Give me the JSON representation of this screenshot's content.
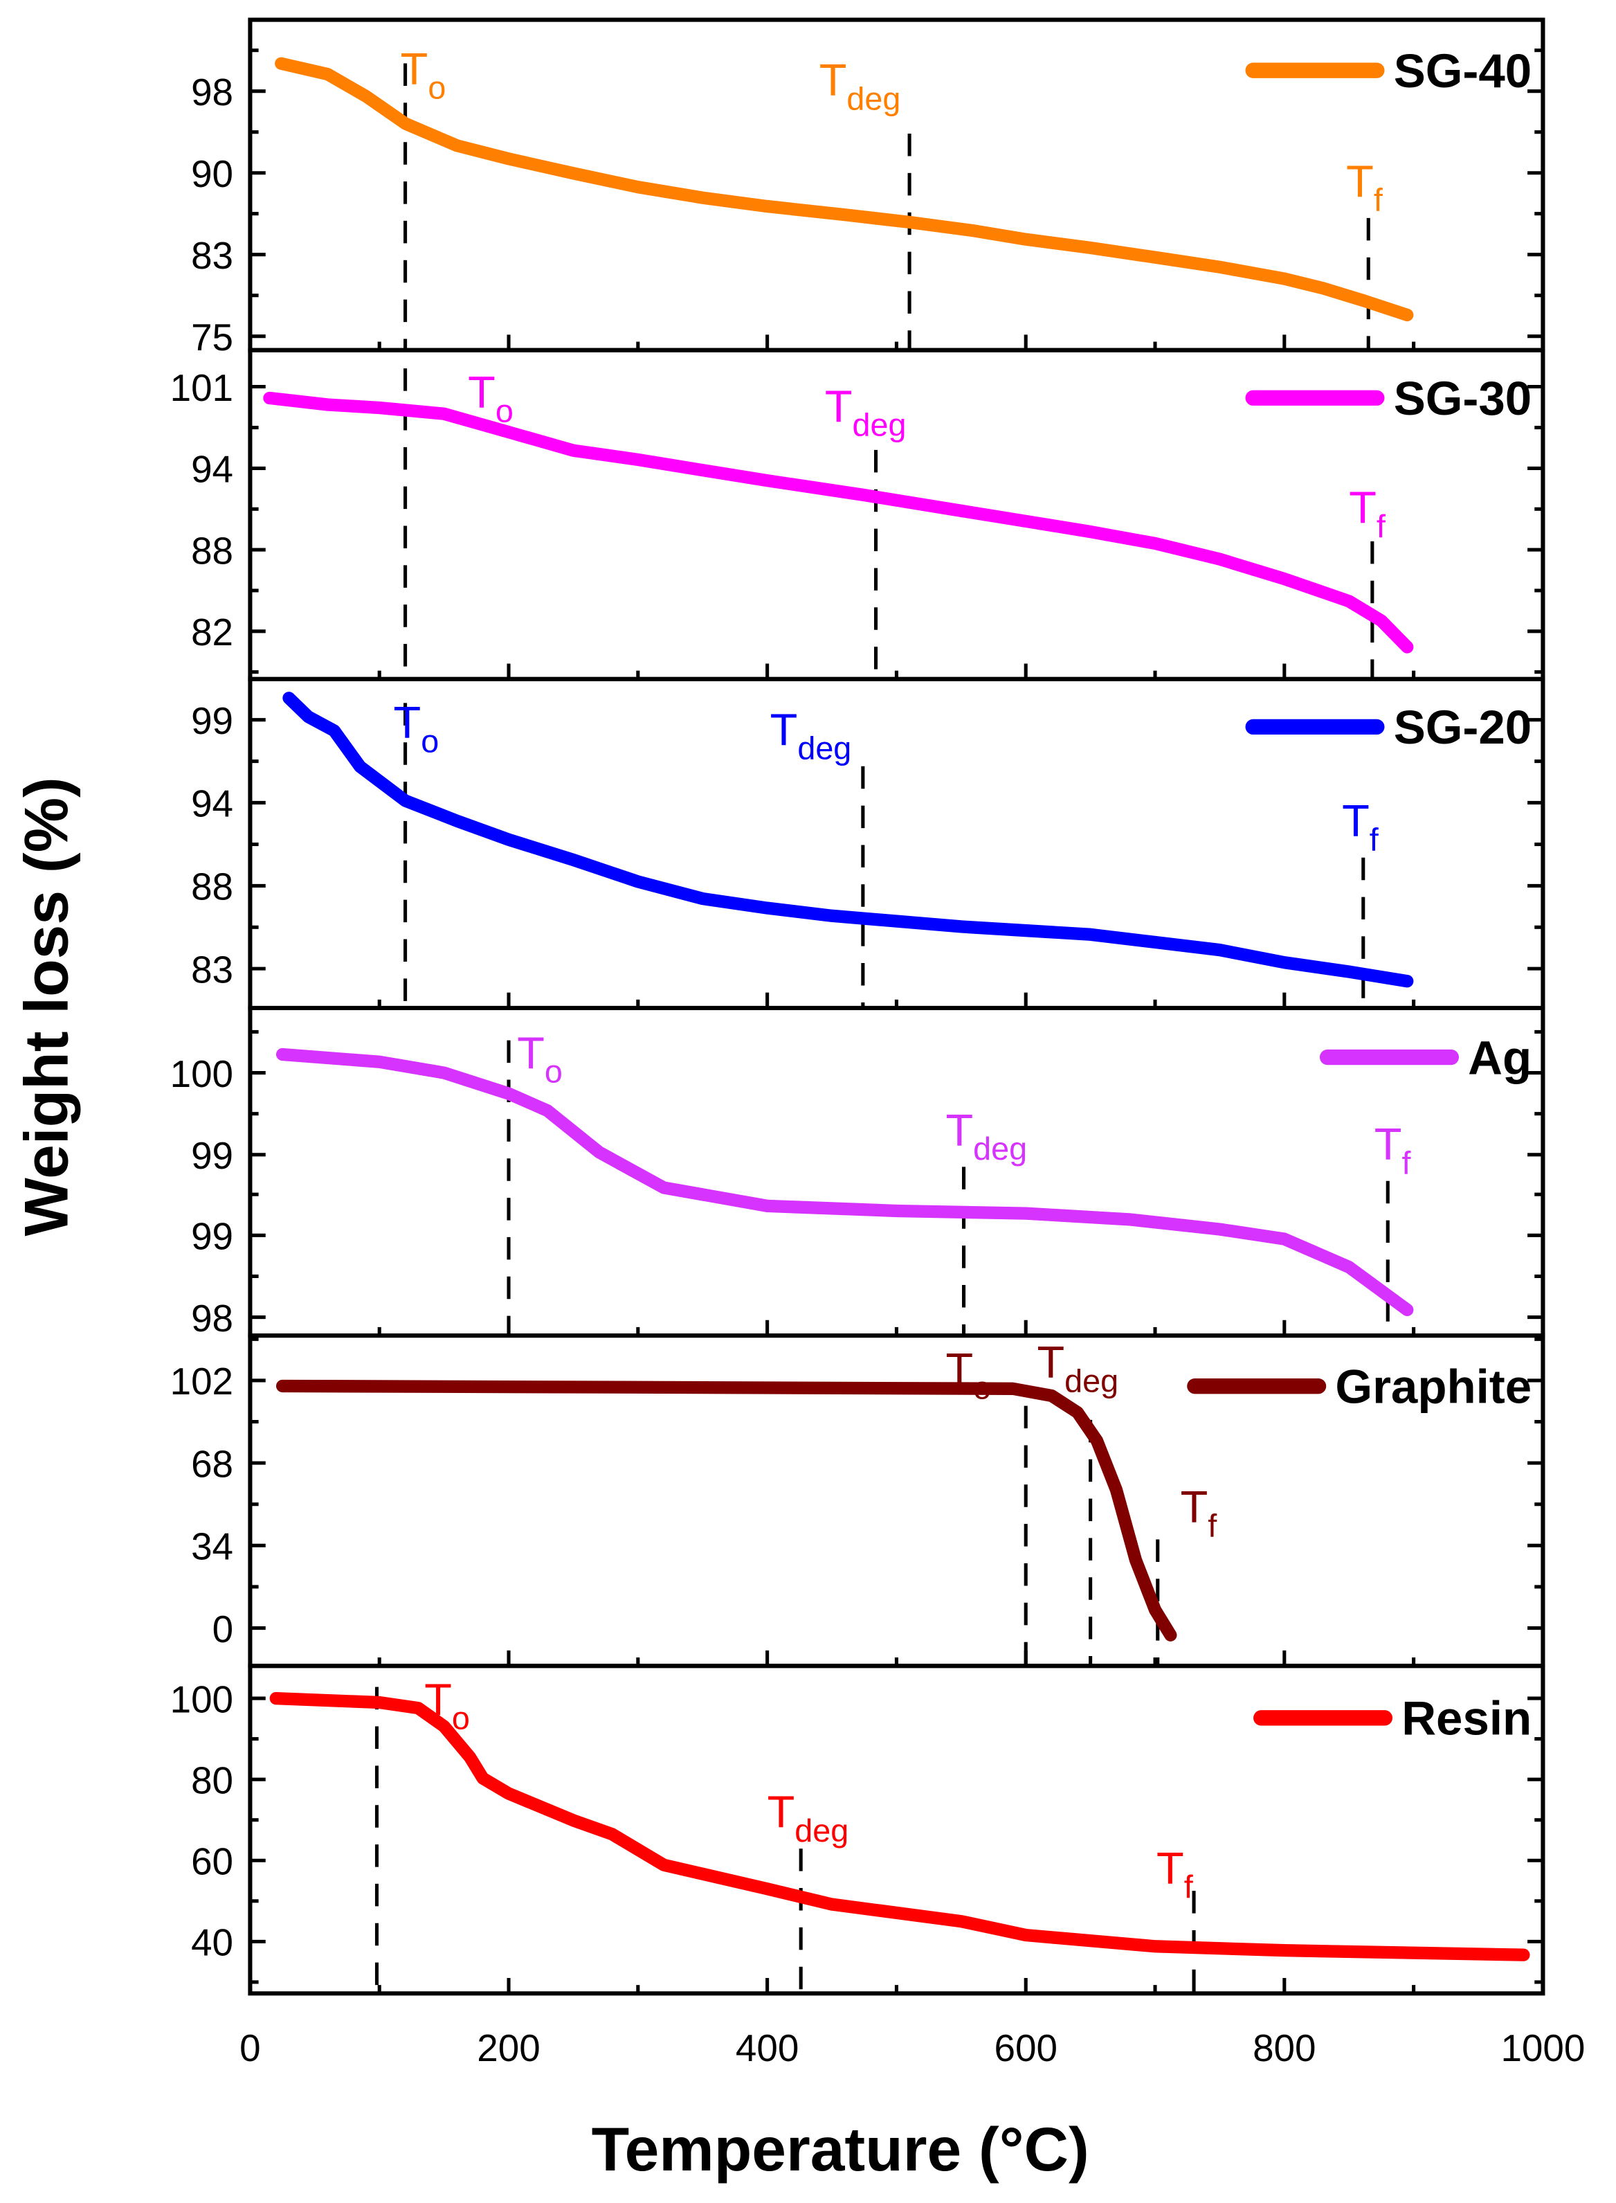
{
  "chart_data": {
    "type": "line",
    "xlabel": "Temperature (°C)",
    "ylabel": "Weight loss (%)",
    "xlim": [
      0,
      1000
    ],
    "xticks": [
      0,
      200,
      400,
      600,
      800,
      1000
    ],
    "xtick_labels": [
      "0",
      "200",
      "400",
      "600",
      "800",
      "1000"
    ],
    "grid": false,
    "legend_placement": "top-right of each panel",
    "panels": [
      {
        "name": "SG-40",
        "color": "#ff8000",
        "ylim": [
          73.7,
          104.7
        ],
        "yticks": [
          75,
          82.67,
          90.33,
          98
        ],
        "ytick_labels": [
          "75",
          "83",
          "90",
          "98"
        ],
        "points": [
          [
            24,
            100.6
          ],
          [
            60,
            99.6
          ],
          [
            90,
            97.5
          ],
          [
            120,
            94.96
          ],
          [
            160,
            92.9
          ],
          [
            200,
            91.65
          ],
          [
            250,
            90.3
          ],
          [
            300,
            89.0
          ],
          [
            350,
            88.0
          ],
          [
            400,
            87.2
          ],
          [
            460,
            86.4
          ],
          [
            510,
            85.7
          ],
          [
            560,
            84.9
          ],
          [
            600,
            84.1
          ],
          [
            650,
            83.3
          ],
          [
            700,
            82.4
          ],
          [
            750,
            81.5
          ],
          [
            800,
            80.4
          ],
          [
            830,
            79.5
          ],
          [
            860,
            78.4
          ],
          [
            895,
            77.0
          ]
        ],
        "annotations": [
          {
            "main": "T",
            "sub": "o",
            "x": 120
          },
          {
            "main": "T",
            "sub": "deg",
            "x": 510
          },
          {
            "main": "T",
            "sub": "f",
            "x": 865
          }
        ]
      },
      {
        "name": "SG-30",
        "color": "#ff00ff",
        "ylim": [
          78.35,
          103.46
        ],
        "yticks": [
          82,
          88.22,
          94.44,
          100.67
        ],
        "ytick_labels": [
          "82",
          "88",
          "94",
          "101"
        ],
        "points": [
          [
            15,
            99.8
          ],
          [
            60,
            99.3
          ],
          [
            100,
            99.06
          ],
          [
            150,
            98.6
          ],
          [
            200,
            97.2
          ],
          [
            250,
            95.8
          ],
          [
            300,
            95.1
          ],
          [
            350,
            94.3
          ],
          [
            400,
            93.5
          ],
          [
            475,
            92.4
          ],
          [
            550,
            91.2
          ],
          [
            600,
            90.4
          ],
          [
            650,
            89.6
          ],
          [
            700,
            88.7
          ],
          [
            750,
            87.5
          ],
          [
            800,
            86.0
          ],
          [
            850,
            84.3
          ],
          [
            875,
            82.8
          ],
          [
            895,
            80.8
          ]
        ],
        "annotations": [
          {
            "main": "T",
            "sub": "o",
            "x": 120
          },
          {
            "main": "T",
            "sub": "deg",
            "x": 484
          },
          {
            "main": "T",
            "sub": "f",
            "x": 868
          }
        ]
      },
      {
        "name": "SG-20",
        "color": "#0000ff",
        "ylim": [
          80.47,
          101.62
        ],
        "yticks": [
          83,
          88.33,
          93.67,
          99
        ],
        "ytick_labels": [
          "83",
          "88",
          "94",
          "99"
        ],
        "points": [
          [
            30,
            100.4
          ],
          [
            45,
            99.2
          ],
          [
            65,
            98.3
          ],
          [
            85,
            96.0
          ],
          [
            120,
            93.8
          ],
          [
            160,
            92.5
          ],
          [
            200,
            91.3
          ],
          [
            250,
            90.0
          ],
          [
            300,
            88.6
          ],
          [
            350,
            87.5
          ],
          [
            400,
            86.9
          ],
          [
            450,
            86.4
          ],
          [
            550,
            85.7
          ],
          [
            650,
            85.2
          ],
          [
            700,
            84.7
          ],
          [
            750,
            84.2
          ],
          [
            800,
            83.4
          ],
          [
            850,
            82.8
          ],
          [
            895,
            82.2
          ]
        ],
        "annotations": [
          {
            "main": "T",
            "sub": "o",
            "x": 120
          },
          {
            "main": "T",
            "sub": "deg",
            "x": 474
          },
          {
            "main": "T",
            "sub": "f",
            "x": 861
          }
        ]
      },
      {
        "name": "Ag",
        "color": "#d633ff",
        "ylim": [
          97.85,
          100.53
        ],
        "yticks": [
          98,
          98.67,
          99.33,
          100
        ],
        "ytick_labels": [
          "98",
          "99",
          "99",
          "100"
        ],
        "points": [
          [
            25,
            100.15
          ],
          [
            100,
            100.09
          ],
          [
            150,
            100.0
          ],
          [
            200,
            99.83
          ],
          [
            230,
            99.69
          ],
          [
            250,
            99.52
          ],
          [
            270,
            99.35
          ],
          [
            320,
            99.06
          ],
          [
            400,
            98.91
          ],
          [
            500,
            98.87
          ],
          [
            600,
            98.85
          ],
          [
            680,
            98.8
          ],
          [
            750,
            98.72
          ],
          [
            800,
            98.64
          ],
          [
            850,
            98.41
          ],
          [
            895,
            98.06
          ]
        ],
        "annotations": [
          {
            "main": "T",
            "sub": "o",
            "x": 200
          },
          {
            "main": "T",
            "sub": "deg",
            "x": 552
          },
          {
            "main": "T",
            "sub": "f",
            "x": 880
          }
        ]
      },
      {
        "name": "Graphite",
        "color": "#800000",
        "ylim": [
          -15.6,
          120.5
        ],
        "yticks": [
          0,
          34,
          68,
          102
        ],
        "ytick_labels": [
          "0",
          "34",
          "68",
          "102"
        ],
        "points": [
          [
            25,
            99.7
          ],
          [
            300,
            99.2
          ],
          [
            590,
            98.6
          ],
          [
            620,
            95.7
          ],
          [
            640,
            88.8
          ],
          [
            655,
            77.2
          ],
          [
            670,
            56.9
          ],
          [
            685,
            28.0
          ],
          [
            700,
            7.5
          ],
          [
            712,
            -2.9
          ]
        ],
        "annotations": [
          {
            "main": "T",
            "sub": "o",
            "x": 600
          },
          {
            "main": "T",
            "sub": "deg",
            "x": 650
          },
          {
            "main": "T",
            "sub": "f",
            "x": 702
          }
        ]
      },
      {
        "name": "Resin",
        "color": "#ff0000",
        "ylim": [
          27.2,
          108
        ],
        "yticks": [
          40,
          60,
          80,
          100
        ],
        "ytick_labels": [
          "40",
          "60",
          "80",
          "100"
        ],
        "points": [
          [
            20,
            100
          ],
          [
            100,
            99
          ],
          [
            130,
            97.6
          ],
          [
            150,
            93.1
          ],
          [
            170,
            85.5
          ],
          [
            180,
            80.3
          ],
          [
            200,
            76.5
          ],
          [
            250,
            69.9
          ],
          [
            280,
            66.5
          ],
          [
            320,
            58.9
          ],
          [
            400,
            53
          ],
          [
            450,
            49.2
          ],
          [
            550,
            45
          ],
          [
            600,
            41.6
          ],
          [
            700,
            38.8
          ],
          [
            800,
            37.8
          ],
          [
            985,
            36.7
          ]
        ],
        "annotations": [
          {
            "main": "T",
            "sub": "o",
            "x": 98
          },
          {
            "main": "T",
            "sub": "deg",
            "x": 426
          },
          {
            "main": "T",
            "sub": "f",
            "x": 730
          }
        ]
      }
    ]
  }
}
